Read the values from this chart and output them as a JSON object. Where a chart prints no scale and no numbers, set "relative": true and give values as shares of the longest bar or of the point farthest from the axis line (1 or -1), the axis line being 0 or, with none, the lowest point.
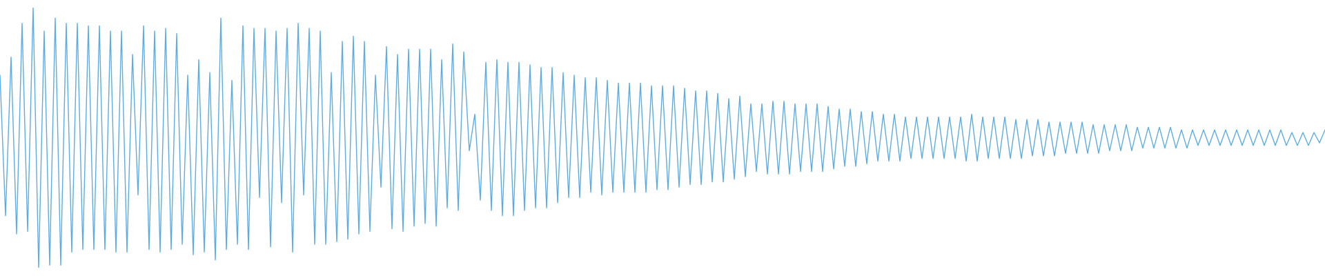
{
  "chart_data": {
    "type": "line",
    "relative": true,
    "marker": "none",
    "color": "#5dade2",
    "categories": [
      null,
      null,
      null,
      null,
      null,
      null,
      null,
      null,
      null,
      null,
      null,
      null,
      null,
      null,
      null,
      null,
      null,
      null,
      null,
      null,
      null,
      null,
      null,
      null,
      null,
      null,
      null,
      null,
      null,
      null,
      null,
      null,
      null,
      null,
      null,
      null,
      null,
      null,
      null,
      null,
      null,
      null,
      null,
      null,
      null,
      null,
      null,
      null,
      null,
      null,
      null,
      null,
      null,
      null,
      null,
      null,
      null,
      null,
      null,
      null,
      null,
      null,
      null,
      null,
      null,
      null,
      null,
      null,
      null,
      null,
      null,
      null,
      null,
      null,
      null,
      null,
      null,
      null,
      null,
      null,
      null,
      null,
      null,
      null,
      null,
      null,
      null,
      null,
      null,
      null,
      null,
      null,
      null,
      null,
      null,
      null,
      null,
      null,
      null,
      null,
      null,
      null,
      null,
      null,
      null,
      null,
      null,
      null,
      null,
      null,
      null,
      null,
      null,
      null,
      null,
      null,
      null,
      null,
      null,
      null,
      null,
      null,
      null,
      null,
      null,
      null,
      null,
      null,
      null,
      null,
      null,
      null,
      null,
      null,
      null,
      null,
      null,
      null,
      null,
      null,
      null,
      null,
      null,
      null,
      null,
      null,
      null,
      null,
      null,
      null,
      null,
      null,
      null,
      null,
      null,
      null,
      null,
      null,
      null,
      null,
      null,
      null,
      null,
      null,
      null,
      null,
      null,
      null,
      null,
      null,
      null,
      null,
      null,
      null,
      null,
      null,
      null,
      null,
      null,
      null,
      null,
      null,
      null,
      null,
      null,
      null,
      null,
      null,
      null,
      null,
      null,
      null,
      null,
      null,
      null,
      null,
      null,
      null,
      null,
      null,
      null,
      null,
      null,
      null,
      null,
      null,
      null,
      null,
      null,
      null,
      null,
      null,
      null,
      null,
      null,
      null,
      null,
      null,
      null,
      null,
      null,
      null,
      null,
      null,
      null,
      null,
      null,
      null,
      null,
      null,
      null,
      null,
      null,
      null,
      null,
      null,
      null,
      null,
      null,
      null,
      null
    ],
    "values": [
      0.74,
      0.2,
      0.81,
      0.13,
      0.94,
      0.14,
      1.0,
      0.0,
      0.91,
      0.01,
      0.96,
      0.01,
      0.94,
      0.06,
      0.94,
      0.07,
      0.93,
      0.07,
      0.93,
      0.07,
      0.91,
      0.06,
      0.91,
      0.06,
      0.82,
      0.28,
      0.93,
      0.07,
      0.91,
      0.06,
      0.92,
      0.07,
      0.9,
      0.09,
      0.74,
      0.05,
      0.8,
      0.06,
      0.75,
      0.03,
      0.96,
      0.07,
      0.72,
      0.09,
      0.93,
      0.07,
      0.92,
      0.27,
      0.92,
      0.08,
      0.91,
      0.25,
      0.92,
      0.06,
      0.94,
      0.28,
      0.92,
      0.09,
      0.91,
      0.09,
      0.75,
      0.1,
      0.87,
      0.11,
      0.89,
      0.13,
      0.87,
      0.14,
      0.74,
      0.31,
      0.85,
      0.15,
      0.82,
      0.14,
      0.84,
      0.16,
      0.84,
      0.17,
      0.84,
      0.16,
      0.8,
      0.23,
      0.86,
      0.22,
      0.83,
      0.45,
      0.59,
      0.26,
      0.79,
      0.22,
      0.8,
      0.2,
      0.79,
      0.2,
      0.79,
      0.22,
      0.78,
      0.23,
      0.77,
      0.23,
      0.77,
      0.25,
      0.75,
      0.27,
      0.74,
      0.27,
      0.73,
      0.29,
      0.73,
      0.28,
      0.72,
      0.29,
      0.71,
      0.29,
      0.71,
      0.29,
      0.71,
      0.29,
      0.7,
      0.3,
      0.7,
      0.3,
      0.7,
      0.31,
      0.69,
      0.32,
      0.68,
      0.32,
      0.68,
      0.33,
      0.67,
      0.33,
      0.65,
      0.34,
      0.66,
      0.35,
      0.63,
      0.37,
      0.63,
      0.36,
      0.64,
      0.36,
      0.64,
      0.36,
      0.63,
      0.37,
      0.63,
      0.37,
      0.63,
      0.37,
      0.62,
      0.38,
      0.61,
      0.39,
      0.61,
      0.39,
      0.6,
      0.4,
      0.6,
      0.41,
      0.59,
      0.41,
      0.59,
      0.41,
      0.58,
      0.42,
      0.58,
      0.42,
      0.58,
      0.42,
      0.58,
      0.42,
      0.58,
      0.42,
      0.58,
      0.41,
      0.59,
      0.41,
      0.58,
      0.42,
      0.58,
      0.42,
      0.58,
      0.42,
      0.57,
      0.42,
      0.57,
      0.43,
      0.57,
      0.43,
      0.56,
      0.43,
      0.56,
      0.44,
      0.56,
      0.44,
      0.56,
      0.44,
      0.55,
      0.44,
      0.55,
      0.45,
      0.55,
      0.45,
      0.55,
      0.45,
      0.54,
      0.46,
      0.54,
      0.46,
      0.54,
      0.46,
      0.54,
      0.46,
      0.53,
      0.46,
      0.53,
      0.47,
      0.53,
      0.47,
      0.53,
      0.47,
      0.53,
      0.47,
      0.53,
      0.47,
      0.53,
      0.47,
      0.53,
      0.47,
      0.53,
      0.47,
      0.53,
      0.47,
      0.52,
      0.47,
      0.52,
      0.47,
      0.52,
      0.48,
      0.53
    ]
  }
}
